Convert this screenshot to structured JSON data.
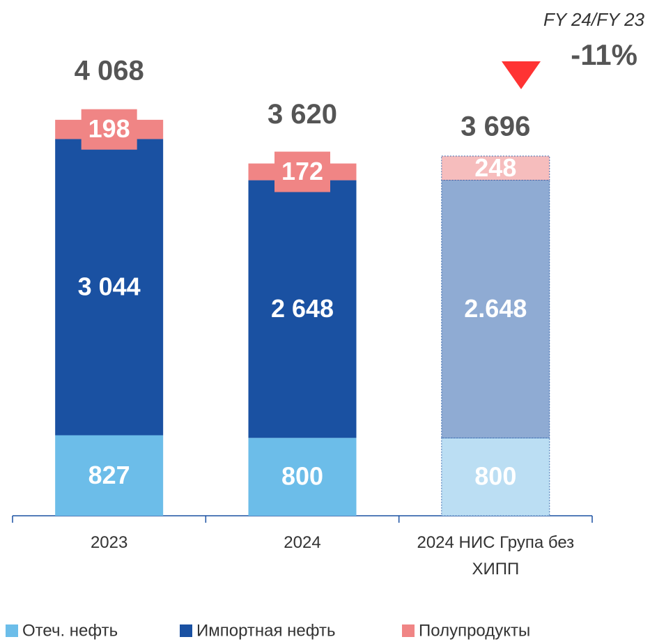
{
  "chart_data": {
    "type": "stacked_bar",
    "categories": [
      "2023",
      "2024",
      "2024 НИС Група без ХИПП"
    ],
    "series": [
      {
        "name": "Отеч. нефть",
        "color": "#6cbde9",
        "faded_color": "#bbdef3",
        "values": [
          827,
          800,
          800
        ],
        "value_labels": [
          "827",
          "800",
          "800"
        ]
      },
      {
        "name": "Импортная нефть",
        "color": "#1a51a2",
        "faded_color": "#8fabd3",
        "values": [
          3044,
          2648,
          2648
        ],
        "value_labels": [
          "3 044",
          "2 648",
          "2.648"
        ]
      },
      {
        "name": "Полупродукты",
        "color": "#f08585",
        "faded_color": "#f6bdbd",
        "values": [
          198,
          172,
          248
        ],
        "value_labels": [
          "198",
          "172",
          "248"
        ]
      }
    ],
    "totals": [
      4068,
      3620,
      3696
    ],
    "total_labels": [
      "4 068",
      "3 620",
      "3 696"
    ],
    "faded": [
      false,
      false,
      true
    ],
    "change": {
      "caption": "FY 24/FY 23",
      "value": -11,
      "label": "-11%"
    },
    "ylim": [
      0,
      5300
    ],
    "legend": "bottom"
  }
}
